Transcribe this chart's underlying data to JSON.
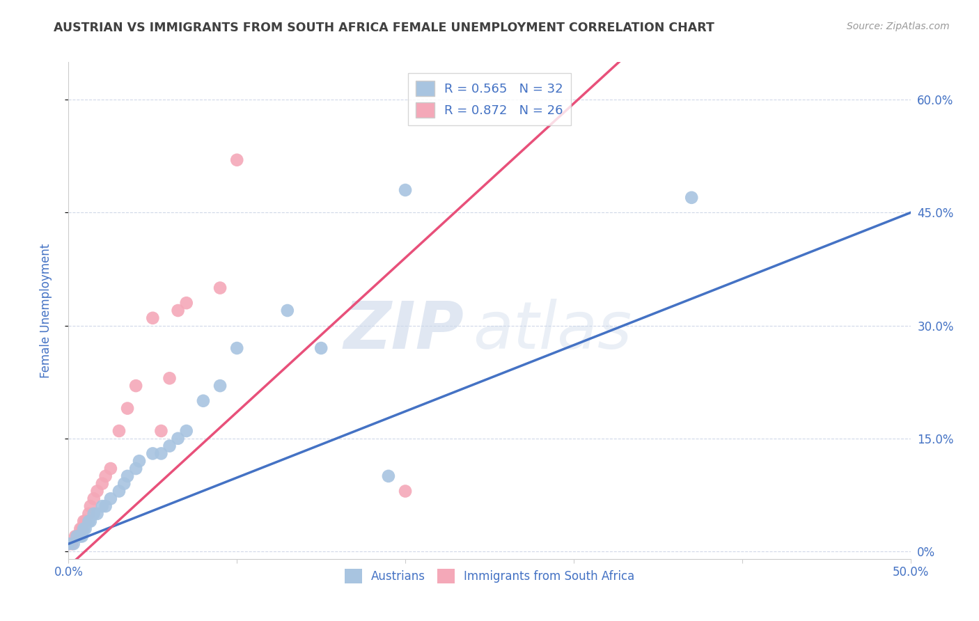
{
  "title": "AUSTRIAN VS IMMIGRANTS FROM SOUTH AFRICA FEMALE UNEMPLOYMENT CORRELATION CHART",
  "source": "Source: ZipAtlas.com",
  "ylabel": "Female Unemployment",
  "right_yticks": [
    "0%",
    "15.0%",
    "30.0%",
    "45.0%",
    "60.0%"
  ],
  "right_ytick_vals": [
    0.0,
    0.15,
    0.3,
    0.45,
    0.6
  ],
  "xlim": [
    0,
    0.5
  ],
  "ylim": [
    -0.01,
    0.65
  ],
  "blue_R": "R = 0.565",
  "blue_N": "N = 32",
  "pink_R": "R = 0.872",
  "pink_N": "N = 26",
  "blue_color": "#a8c4e0",
  "pink_color": "#f4a8b8",
  "blue_line_color": "#4472c4",
  "pink_line_color": "#e8507a",
  "title_color": "#404040",
  "axis_color": "#4472c4",
  "legend_text_color": "#4472c4",
  "watermark_zip": "ZIP",
  "watermark_atlas": "atlas",
  "austrians_x": [
    0.0,
    0.003,
    0.005,
    0.007,
    0.008,
    0.009,
    0.01,
    0.012,
    0.013,
    0.015,
    0.017,
    0.02,
    0.022,
    0.025,
    0.03,
    0.033,
    0.035,
    0.04,
    0.042,
    0.05,
    0.055,
    0.06,
    0.065,
    0.07,
    0.08,
    0.09,
    0.1,
    0.13,
    0.15,
    0.19,
    0.2,
    0.37
  ],
  "austrians_y": [
    0.01,
    0.01,
    0.02,
    0.02,
    0.02,
    0.03,
    0.03,
    0.04,
    0.04,
    0.05,
    0.05,
    0.06,
    0.06,
    0.07,
    0.08,
    0.09,
    0.1,
    0.11,
    0.12,
    0.13,
    0.13,
    0.14,
    0.15,
    0.16,
    0.2,
    0.22,
    0.27,
    0.32,
    0.27,
    0.1,
    0.48,
    0.47
  ],
  "immigrants_x": [
    0.0,
    0.002,
    0.004,
    0.005,
    0.007,
    0.008,
    0.009,
    0.01,
    0.012,
    0.013,
    0.015,
    0.017,
    0.02,
    0.022,
    0.025,
    0.03,
    0.035,
    0.04,
    0.05,
    0.055,
    0.06,
    0.065,
    0.07,
    0.09,
    0.1,
    0.2
  ],
  "immigrants_y": [
    0.01,
    0.01,
    0.02,
    0.02,
    0.03,
    0.03,
    0.04,
    0.04,
    0.05,
    0.06,
    0.07,
    0.08,
    0.09,
    0.1,
    0.11,
    0.16,
    0.19,
    0.22,
    0.31,
    0.16,
    0.23,
    0.32,
    0.33,
    0.35,
    0.52,
    0.08
  ],
  "grid_color": "#d0d8e8",
  "background_color": "#ffffff",
  "minor_xticks": [
    0.0,
    0.1,
    0.2,
    0.3,
    0.4,
    0.5
  ],
  "blue_slope": 0.88,
  "blue_intercept": 0.01,
  "pink_slope": 2.05,
  "pink_intercept": -0.02
}
